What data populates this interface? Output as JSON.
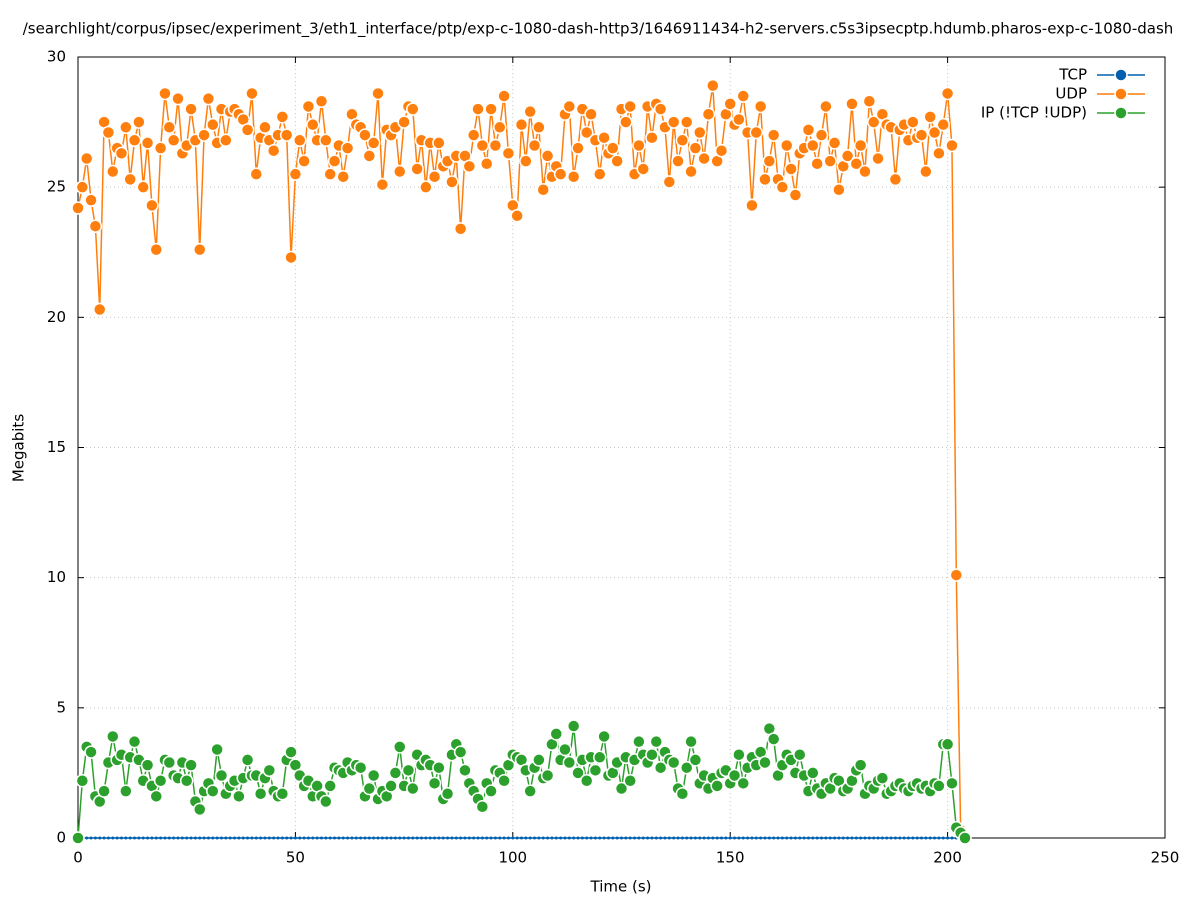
{
  "chart_data": {
    "type": "line",
    "title": "/searchlight/corpus/ipsec/experiment_3/eth1_interface/ptp/exp-c-1080-dash-http3/1646911434-h2-servers.c5s3ipsecptp.hdumb.pharos-exp-c-1080-dash",
    "x_label": "Time (s)",
    "y_label": "Megabits",
    "xlim": [
      0,
      250
    ],
    "xticks": [
      0,
      50,
      100,
      150,
      200,
      250
    ],
    "ylim": [
      0,
      30
    ],
    "yticks": [
      0,
      5,
      10,
      15,
      20,
      25,
      30
    ],
    "grid": true,
    "legend": "top-right",
    "x": [
      0,
      1,
      2,
      3,
      4,
      5,
      6,
      7,
      8,
      9,
      10,
      11,
      12,
      13,
      14,
      15,
      16,
      17,
      18,
      19,
      20,
      21,
      22,
      23,
      24,
      25,
      26,
      27,
      28,
      29,
      30,
      31,
      32,
      33,
      34,
      35,
      36,
      37,
      38,
      39,
      40,
      41,
      42,
      43,
      44,
      45,
      46,
      47,
      48,
      49,
      50,
      51,
      52,
      53,
      54,
      55,
      56,
      57,
      58,
      59,
      60,
      61,
      62,
      63,
      64,
      65,
      66,
      67,
      68,
      69,
      70,
      71,
      72,
      73,
      74,
      75,
      76,
      77,
      78,
      79,
      80,
      81,
      82,
      83,
      84,
      85,
      86,
      87,
      88,
      89,
      90,
      91,
      92,
      93,
      94,
      95,
      96,
      97,
      98,
      99,
      100,
      101,
      102,
      103,
      104,
      105,
      106,
      107,
      108,
      109,
      110,
      111,
      112,
      113,
      114,
      115,
      116,
      117,
      118,
      119,
      120,
      121,
      122,
      123,
      124,
      125,
      126,
      127,
      128,
      129,
      130,
      131,
      132,
      133,
      134,
      135,
      136,
      137,
      138,
      139,
      140,
      141,
      142,
      143,
      144,
      145,
      146,
      147,
      148,
      149,
      150,
      151,
      152,
      153,
      154,
      155,
      156,
      157,
      158,
      159,
      160,
      161,
      162,
      163,
      164,
      165,
      166,
      167,
      168,
      169,
      170,
      171,
      172,
      173,
      174,
      175,
      176,
      177,
      178,
      179,
      180,
      181,
      182,
      183,
      184,
      185,
      186,
      187,
      188,
      189,
      190,
      191,
      192,
      193,
      194,
      195,
      196,
      197,
      198,
      199,
      200,
      201,
      202,
      203,
      204
    ],
    "series": [
      {
        "name": "TCP",
        "color": "#0060ad",
        "marker_size": 1.5,
        "values": [
          0,
          0,
          0,
          0,
          0,
          0,
          0,
          0,
          0,
          0,
          0,
          0,
          0,
          0,
          0,
          0,
          0,
          0,
          0,
          0,
          0,
          0,
          0,
          0,
          0,
          0,
          0,
          0,
          0,
          0,
          0,
          0,
          0,
          0,
          0,
          0,
          0,
          0,
          0,
          0,
          0,
          0,
          0,
          0,
          0,
          0,
          0,
          0,
          0,
          0,
          0,
          0,
          0,
          0,
          0,
          0,
          0,
          0,
          0,
          0,
          0,
          0,
          0,
          0,
          0,
          0,
          0,
          0,
          0,
          0,
          0,
          0,
          0,
          0,
          0,
          0,
          0,
          0,
          0,
          0,
          0,
          0,
          0,
          0,
          0,
          0,
          0,
          0,
          0,
          0,
          0,
          0,
          0,
          0,
          0,
          0,
          0,
          0,
          0,
          0,
          0,
          0,
          0,
          0,
          0,
          0,
          0,
          0,
          0,
          0,
          0,
          0,
          0,
          0,
          0,
          0,
          0,
          0,
          0,
          0,
          0,
          0,
          0,
          0,
          0,
          0,
          0,
          0,
          0,
          0,
          0,
          0,
          0,
          0,
          0,
          0,
          0,
          0,
          0,
          0,
          0,
          0,
          0,
          0,
          0,
          0,
          0,
          0,
          0,
          0,
          0,
          0,
          0,
          0,
          0,
          0,
          0,
          0,
          0,
          0,
          0,
          0,
          0,
          0,
          0,
          0,
          0,
          0,
          0,
          0,
          0,
          0,
          0,
          0,
          0,
          0,
          0,
          0,
          0,
          0,
          0,
          0,
          0,
          0,
          0,
          0,
          0,
          0,
          0,
          0,
          0,
          0,
          0,
          0,
          0,
          0,
          0,
          0,
          0,
          0,
          0,
          0,
          0,
          0,
          0
        ]
      },
      {
        "name": "UDP",
        "color": "#ff7f0e",
        "marker_size": 6,
        "values": [
          24.2,
          25.0,
          26.1,
          24.5,
          23.5,
          20.3,
          27.5,
          27.1,
          25.6,
          26.5,
          26.3,
          27.3,
          25.3,
          26.8,
          27.5,
          25.0,
          26.7,
          24.3,
          22.6,
          26.5,
          28.6,
          27.3,
          26.8,
          28.4,
          26.3,
          26.6,
          28.0,
          26.8,
          22.6,
          27.0,
          28.4,
          27.4,
          26.7,
          28.0,
          26.8,
          27.9,
          28.0,
          27.8,
          27.6,
          27.2,
          28.6,
          25.5,
          26.9,
          27.3,
          26.8,
          26.4,
          27.0,
          27.7,
          27.0,
          22.3,
          25.5,
          26.8,
          26.0,
          28.1,
          27.4,
          26.8,
          28.3,
          26.8,
          25.5,
          26.0,
          26.6,
          25.4,
          26.5,
          27.8,
          27.4,
          27.3,
          27.0,
          26.2,
          26.7,
          28.6,
          25.1,
          27.2,
          27.0,
          27.3,
          25.6,
          27.5,
          28.1,
          28.0,
          25.7,
          26.8,
          25.0,
          26.7,
          25.4,
          26.7,
          25.8,
          26.0,
          25.2,
          26.2,
          23.4,
          26.2,
          25.8,
          27.0,
          28.0,
          26.6,
          25.9,
          28.0,
          26.6,
          27.3,
          28.5,
          26.3,
          24.3,
          23.9,
          27.4,
          26.0,
          27.9,
          26.6,
          27.3,
          24.9,
          26.2,
          25.4,
          25.8,
          25.5,
          27.8,
          28.1,
          25.4,
          26.5,
          28.0,
          27.1,
          27.8,
          26.8,
          25.5,
          26.9,
          26.3,
          26.5,
          26.0,
          28.0,
          27.5,
          28.1,
          25.5,
          26.6,
          25.7,
          28.1,
          26.9,
          28.2,
          28.0,
          27.3,
          25.2,
          27.5,
          26.0,
          26.8,
          27.5,
          25.6,
          26.5,
          27.1,
          26.1,
          27.8,
          28.9,
          26.0,
          26.4,
          27.8,
          28.2,
          27.4,
          27.6,
          28.5,
          27.1,
          24.3,
          27.1,
          28.1,
          25.3,
          26.0,
          27.0,
          25.3,
          25.0,
          26.6,
          25.7,
          24.7,
          26.3,
          26.5,
          27.2,
          26.6,
          25.9,
          27.0,
          28.1,
          26.0,
          26.7,
          24.9,
          25.8,
          26.2,
          28.2,
          25.9,
          26.6,
          25.6,
          28.3,
          27.5,
          26.1,
          27.8,
          27.4,
          27.3,
          25.3,
          27.2,
          27.4,
          26.8,
          27.5,
          26.9,
          27.0,
          25.6,
          27.7,
          27.1,
          26.3,
          27.4,
          28.6,
          26.6,
          10.1,
          0.3,
          0
        ]
      },
      {
        "name": "IP (!TCP  !UDP)",
        "color": "#2ca02c",
        "marker_size": 6,
        "values": [
          0,
          2.2,
          3.5,
          3.3,
          1.6,
          1.4,
          1.8,
          2.9,
          3.9,
          3.0,
          3.2,
          1.8,
          3.1,
          3.7,
          3.0,
          2.2,
          2.8,
          2.0,
          1.6,
          2.2,
          3.0,
          2.9,
          2.4,
          2.3,
          2.9,
          2.2,
          2.8,
          1.4,
          1.1,
          1.8,
          2.1,
          1.8,
          3.4,
          2.4,
          1.7,
          2.0,
          2.2,
          1.6,
          2.3,
          3.0,
          2.4,
          2.4,
          1.7,
          2.3,
          2.6,
          1.8,
          1.6,
          1.7,
          3.0,
          3.3,
          2.8,
          2.4,
          2.0,
          2.2,
          1.6,
          2.0,
          1.6,
          1.4,
          2.0,
          2.7,
          2.6,
          2.5,
          2.9,
          2.6,
          2.8,
          2.7,
          1.6,
          1.9,
          2.4,
          1.5,
          1.8,
          1.6,
          2.0,
          2.5,
          3.5,
          2.0,
          2.6,
          1.9,
          3.2,
          2.8,
          3.0,
          2.8,
          2.1,
          2.7,
          1.5,
          1.7,
          3.2,
          3.6,
          3.3,
          2.6,
          2.1,
          1.8,
          1.5,
          1.2,
          2.1,
          1.8,
          2.6,
          2.5,
          2.2,
          2.8,
          3.2,
          3.1,
          3.0,
          2.6,
          1.8,
          2.7,
          3.0,
          2.3,
          2.4,
          3.6,
          4.0,
          3.0,
          3.4,
          2.9,
          4.3,
          2.5,
          3.0,
          2.2,
          3.1,
          2.6,
          3.1,
          3.9,
          2.4,
          2.5,
          2.9,
          1.9,
          3.1,
          2.2,
          3.0,
          3.7,
          3.2,
          2.9,
          3.2,
          3.7,
          2.7,
          3.3,
          3.0,
          2.9,
          1.9,
          1.7,
          2.7,
          3.7,
          3.0,
          2.1,
          2.4,
          1.9,
          2.3,
          2.0,
          2.5,
          2.6,
          2.1,
          2.4,
          3.2,
          2.1,
          2.7,
          3.1,
          2.8,
          3.3,
          2.9,
          4.2,
          3.8,
          2.4,
          2.8,
          3.2,
          3.0,
          2.5,
          3.2,
          2.4,
          1.8,
          2.5,
          1.9,
          1.7,
          2.1,
          1.9,
          2.3,
          2.2,
          1.8,
          1.9,
          2.2,
          2.6,
          2.8,
          1.7,
          2.0,
          1.9,
          2.2,
          2.3,
          1.7,
          1.8,
          2.0,
          2.1,
          1.9,
          1.8,
          2.0,
          2.1,
          1.9,
          2.0,
          1.8,
          2.1,
          2.0,
          3.6,
          3.6,
          2.1,
          0.4,
          0.2,
          0
        ]
      }
    ]
  }
}
